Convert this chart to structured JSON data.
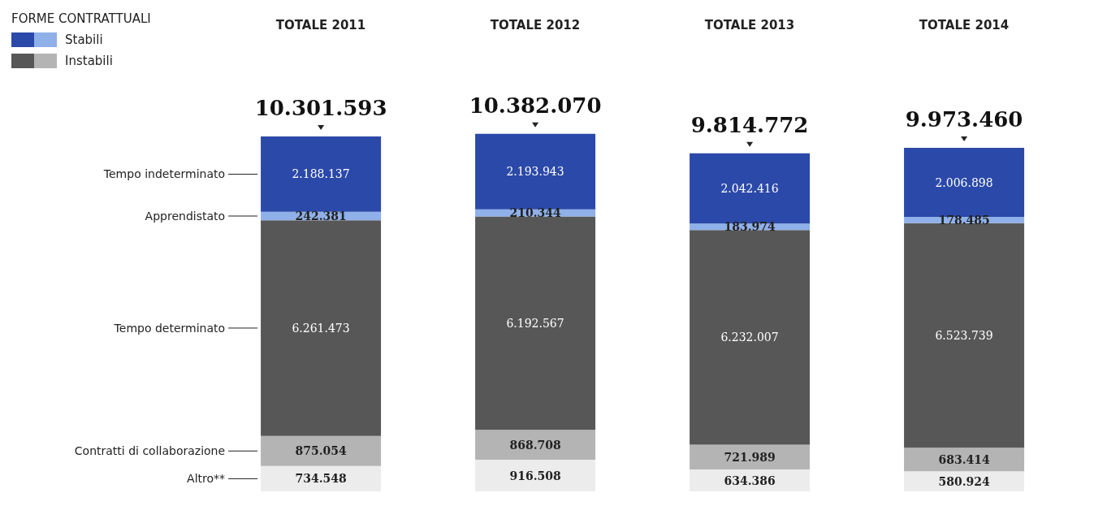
{
  "chart_data": {
    "type": "bar",
    "stacked": true,
    "legend_title": "FORME CONTRATTUALI",
    "annotations": [
      "Stabili",
      "Instabili"
    ],
    "categories": [
      "TOTALE 2011",
      "TOTALE 2012",
      "TOTALE 2013",
      "TOTALE 2014"
    ],
    "totals": [
      "10.301.593",
      "10.382.070",
      "9.814.772",
      "9.973.460"
    ],
    "series": [
      {
        "name": "Altro**",
        "color": "#ececec",
        "values": [
          734548,
          916508,
          634386,
          580924
        ],
        "value_labels": [
          "734.548",
          "916.508",
          "634.386",
          "580.924"
        ]
      },
      {
        "name": "Contratti di collaborazione",
        "color": "#b4b4b4",
        "values": [
          875054,
          868708,
          721989,
          683414
        ],
        "value_labels": [
          "875.054",
          "868.708",
          "721.989",
          "683.414"
        ]
      },
      {
        "name": "Tempo determinato",
        "color": "#575757",
        "values": [
          6261473,
          6192567,
          6232007,
          6523739
        ],
        "value_labels": [
          "6.261.473",
          "6.192.567",
          "6.232.007",
          "6.523.739"
        ]
      },
      {
        "name": "Apprendistato",
        "color": "#8fb0e8",
        "values": [
          242381,
          210344,
          183974,
          178485
        ],
        "value_labels": [
          "242.381",
          "210.344",
          "183.974",
          "178.485"
        ]
      },
      {
        "name": "Tempo indeterminato",
        "color": "#2b49a8",
        "values": [
          2188137,
          2193943,
          2042416,
          2006898
        ],
        "value_labels": [
          "2.188.137",
          "2.193.943",
          "2.042.416",
          "2.006.898"
        ]
      }
    ]
  }
}
